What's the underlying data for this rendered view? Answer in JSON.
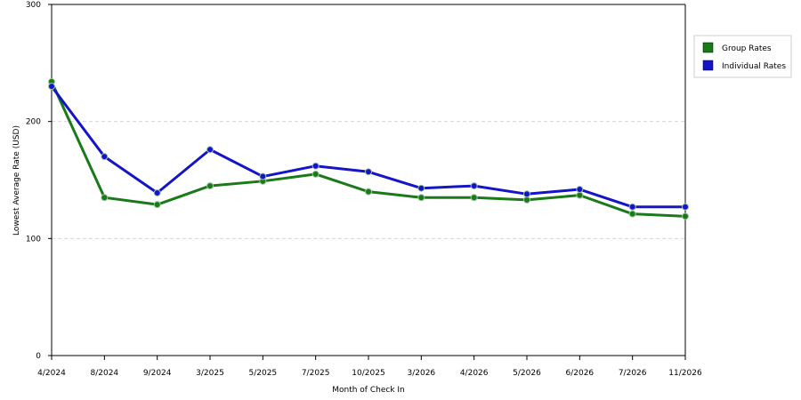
{
  "chart_data": {
    "type": "line",
    "title": "",
    "xlabel": "Month of Check In",
    "ylabel": "Lowest Average Rate (USD)",
    "categories": [
      "4/2024",
      "8/2024",
      "9/2024",
      "3/2025",
      "5/2025",
      "7/2025",
      "10/2025",
      "3/2026",
      "4/2026",
      "5/2026",
      "6/2026",
      "7/2026",
      "11/2026"
    ],
    "ylim": [
      0,
      300
    ],
    "yticks": [
      "0",
      "100",
      "200",
      "300"
    ],
    "grid": "horizontal dashed",
    "legend_position": "right",
    "series": [
      {
        "name": "Group Rates",
        "color": "#1a7a1a",
        "values": [
          234,
          135,
          129,
          145,
          149,
          155,
          140,
          135,
          135,
          133,
          137,
          121,
          119
        ]
      },
      {
        "name": "Individual Rates",
        "color": "#1414c8",
        "values": [
          230,
          170,
          139,
          176,
          153,
          162,
          157,
          143,
          145,
          138,
          142,
          127,
          127
        ]
      }
    ]
  }
}
